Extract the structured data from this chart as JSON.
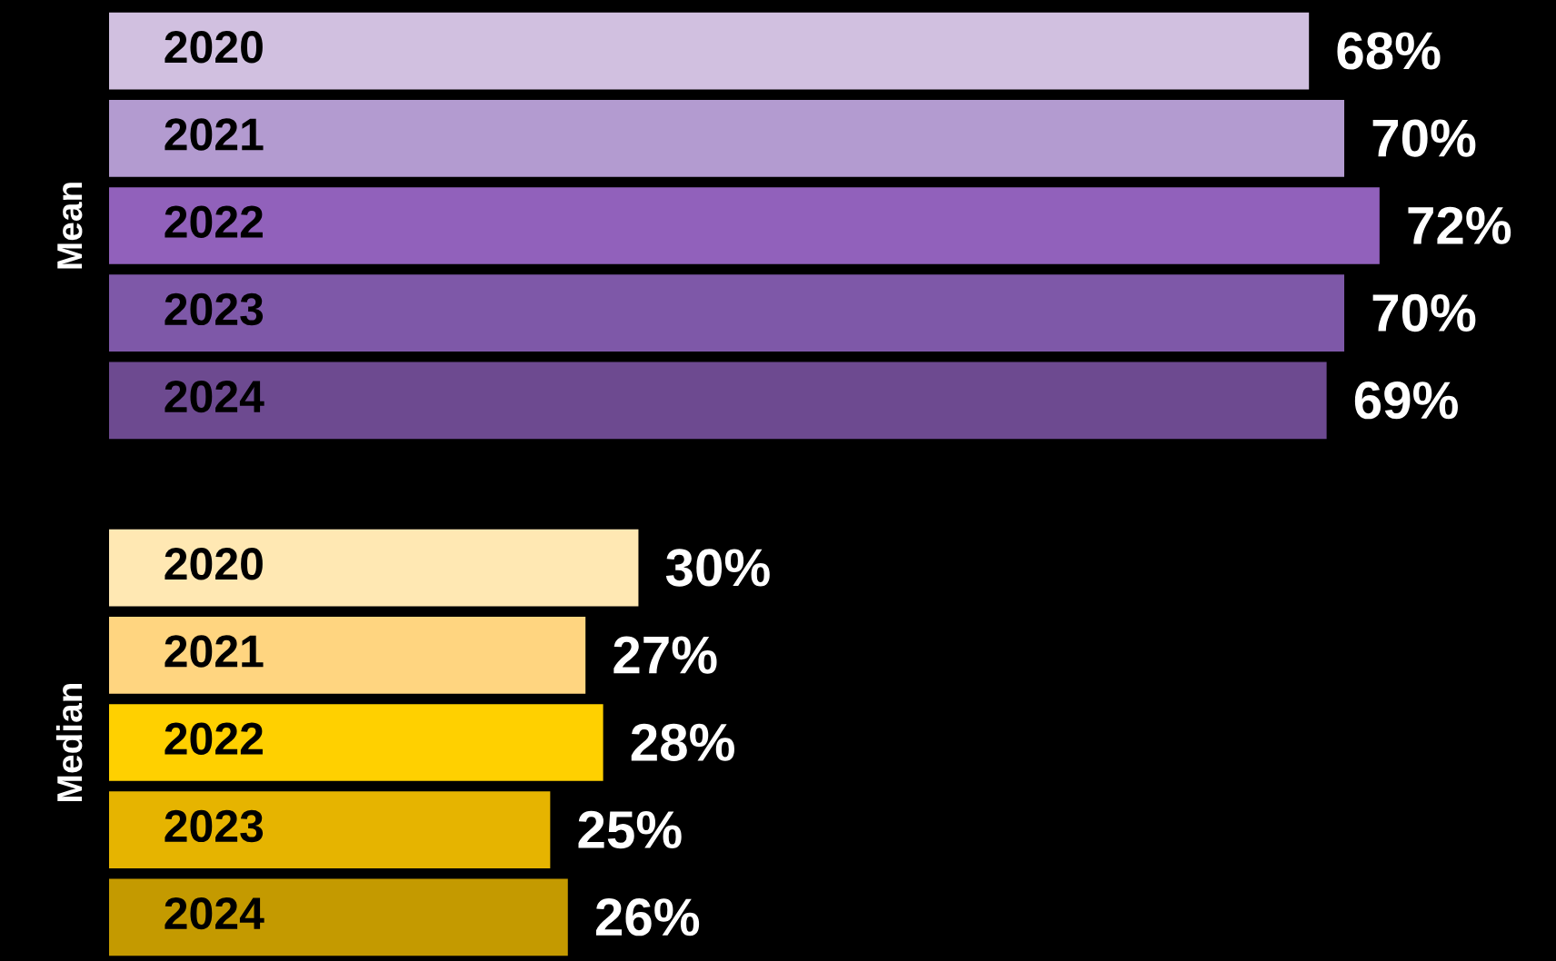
{
  "chart_data": [
    {
      "type": "bar",
      "orientation": "horizontal",
      "ylabel": "Mean",
      "categories": [
        "2020",
        "2021",
        "2022",
        "2023",
        "2024"
      ],
      "values": [
        68,
        70,
        72,
        70,
        69
      ],
      "value_labels": [
        "68%",
        "70%",
        "72%",
        "70%",
        "69%"
      ],
      "colors": [
        "#d1c0e0",
        "#b39bd0",
        "#9161bb",
        "#7e58a8",
        "#6d4a90"
      ],
      "xlim": [
        0,
        82
      ]
    },
    {
      "type": "bar",
      "orientation": "horizontal",
      "ylabel": "Median",
      "categories": [
        "2020",
        "2021",
        "2022",
        "2023",
        "2024"
      ],
      "values": [
        30,
        27,
        28,
        25,
        26
      ],
      "value_labels": [
        "30%",
        "27%",
        "28%",
        "25%",
        "26%"
      ],
      "colors": [
        "#ffe8b3",
        "#ffd580",
        "#ffd000",
        "#e6b400",
        "#c49a00"
      ],
      "xlim": [
        0,
        82
      ]
    }
  ]
}
